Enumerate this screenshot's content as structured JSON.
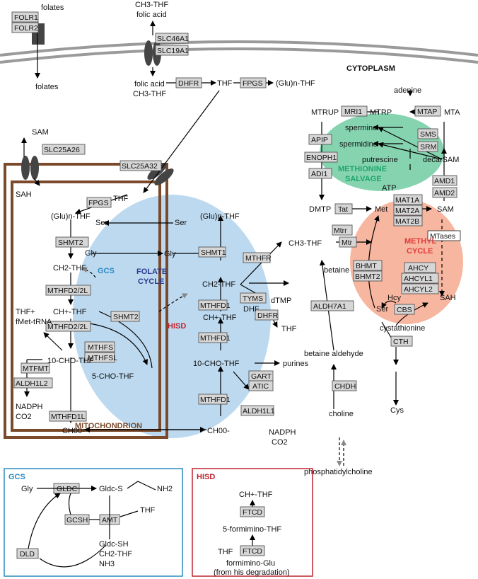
{
  "colors": {
    "mito": "#7a4a2a",
    "folate_cycle": "#bcd9ef",
    "methyl": "#f7b6a0",
    "salvage": "#86d3b0",
    "gcs": "#2a88c2",
    "hisd": "#c0232f",
    "membrane": "#9a9a9a"
  },
  "labels": {
    "folates_top": "folates",
    "folates_bottom": "folates",
    "folr1": "FOLR1",
    "folr2": "FOLR2",
    "ch3thf_top": "CH3-THF",
    "folic_acid_top": "folic acid",
    "slc46a1": "SLC46A1",
    "slc19a1": "SLC19A1",
    "cytoplasm": "CYTOPLASM",
    "folic_acid": "folic acid",
    "ch3thf_cyto": "CH3-THF",
    "dhfr": "DHFR",
    "thf": "THF",
    "fpgs": "FPGS",
    "glu_thf": "(Glu)n-THF",
    "sam": "SAM",
    "sah": "SAH",
    "slc25a26": "SLC25A26",
    "slc25a32": "SLC25A32",
    "mito_thf": "THF",
    "mito_fpgs": "FPGS",
    "mito_glu_thf": "(Glu)n-THF",
    "mito_ser": "Ser",
    "shmt2": "SHMT2",
    "mito_gly": "Gly",
    "gcs": "GCS",
    "mito_ch2thf": "CH2-THF",
    "mthfd2_2l_a": "MTHFD2/2L",
    "mito_chthf": "CH+-THF",
    "shmt2b": "SHMT2",
    "mthfd2_2l_b": "MTHFD2/2L",
    "thf_plus": "THF+",
    "fmet_trna": "fMet-tRNA",
    "mtfmt": "MTFMT",
    "mito_10cho": "10-CHO-THF",
    "aldh1l2": "ALDH1L2",
    "mthfs": "MTHFS",
    "mthfsl": "MTHFSL",
    "cho5": "5-CHO-THF",
    "mthfd1l": "MTHFD1L",
    "nadph_m": "NADPH",
    "co2_m": "CO2",
    "ch00_m": "CH00-",
    "mitochondrion": "MITOCHONDRION",
    "folate": "FOLATE",
    "cycle": "CYCLE",
    "cyto_ser": "Ser",
    "cyto_gly": "Gly",
    "cyto_glu_thf": "(Glu)n-THF",
    "shmt1": "SHMT1",
    "cyto_ch2thf": "CH2-THF",
    "mthfd1_a": "MTHFD1",
    "cyto_chthf": "CH+-THF",
    "hisd": "HISD",
    "mthfd1_b": "MTHFD1",
    "cyto_10cho": "10-CHO-THF",
    "gart": "GART",
    "atic": "ATIC",
    "purines": "purines",
    "mthfd1_c": "MTHFD1",
    "aldh1l1": "ALDH1L1",
    "ch00_c": "CH00-",
    "nadph_c": "NADPH",
    "co2_c": "CO2",
    "mthfr": "MTHFR",
    "cyto_ch3thf": "CH3-THF",
    "tyms": "TYMS",
    "dtmp": "dTMP",
    "dhf": "DHF",
    "dhfr2": "DHFR",
    "thf2": "THF",
    "adenine": "adenine",
    "mtrup": "MTRUP",
    "mri1": "MRI1",
    "mtrp": "MTRP",
    "mtap": "MTAP",
    "mta": "MTA",
    "spermine": "spermine",
    "sms": "SMS",
    "spermidine": "spermidine",
    "srm": "SRM",
    "putrescine": "putrescine",
    "apip": "APIP",
    "enoph1": "ENOPH1",
    "adi1": "ADI1",
    "decarsam": "decarSAM",
    "methionine": "METHIONINE",
    "salvage": "SALVAGE",
    "amd1": "AMD1",
    "amd2": "AMD2",
    "atp": "ATP",
    "dmtp": "DMTP",
    "tat": "Tat",
    "met": "Met",
    "mat1a": "MAT1A",
    "mat2a": "MAT2A",
    "mat2b": "MAT2B",
    "sam2": "SAM",
    "mtrr": "Mtrr",
    "mtr": "Mtr",
    "mtases": "MTases",
    "methyl": "METHYL",
    "methyl_cycle": "CYCLE",
    "betaine": "betaine",
    "bhmt": "BHMT",
    "bhmt2": "BHMT2",
    "ahcy": "AHCY",
    "ahcyl1": "AHCYL1",
    "ahcyl2": "AHCYL2",
    "hcy": "Hcy",
    "sah2": "SAH",
    "ser2": "Ser",
    "cbs": "CBS",
    "aldh7a1": "ALDH7A1",
    "cystathionine": "cystathionine",
    "betaine_aldehyde": "betaine aldehyde",
    "cth": "CTH",
    "cys": "Cys",
    "chdh": "CHDH",
    "choline": "choline",
    "phosphatidylcholine": "phosphatidylcholine"
  },
  "gcs_box": {
    "title": "GCS",
    "gly": "Gly",
    "gldc": "GLDC",
    "gldc_s": "Gldc-S",
    "nh2": "NH2",
    "gcsh": "GCSH",
    "amt": "AMT",
    "thf": "THF",
    "dld": "DLD",
    "gldc_sh": "Gldc-SH",
    "ch2thf": "CH2-THF",
    "nh3": "NH3"
  },
  "hisd_box": {
    "title": "HISD",
    "chthf": "CH+-THF",
    "ftcd_a": "FTCD",
    "formimino_thf": "5-formimino-THF",
    "thf": "THF",
    "ftcd_b": "FTCD",
    "formimino_glu": "formimino-Glu",
    "from_his": "(from his degradation)"
  }
}
